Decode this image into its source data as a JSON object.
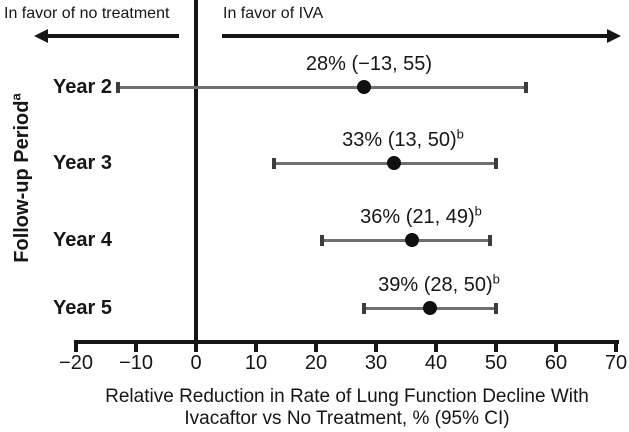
{
  "chart_data": {
    "type": "scatter",
    "plot_style": "forest-plot-horizontal-ci",
    "direction_labels": {
      "left": "In favor of no treatment",
      "right": "In favor of IVA"
    },
    "ylabel": {
      "text": "Follow-up Period",
      "superscript": "a"
    },
    "xlabel_lines": [
      "Relative Reduction in Rate of Lung Function Decline With",
      "Ivacaftor vs No Treatment, % (95% CI)"
    ],
    "xlim": [
      -20,
      70
    ],
    "xtick_values": [
      -20,
      -10,
      0,
      10,
      20,
      30,
      40,
      50,
      60,
      70
    ],
    "xtick_labels": [
      "−20",
      "−10",
      "0",
      "10",
      "20",
      "30",
      "40",
      "50",
      "60",
      "70"
    ],
    "reference_line_x": 0,
    "grid": false,
    "legend": null,
    "categories": [
      "Year 2",
      "Year 3",
      "Year 4",
      "Year 5"
    ],
    "points": [
      {
        "category": "Year 2",
        "estimate": 28,
        "ci_low": -13,
        "ci_high": 55,
        "label": "28% (−13, 55)",
        "label_superscript": ""
      },
      {
        "category": "Year 3",
        "estimate": 33,
        "ci_low": 13,
        "ci_high": 50,
        "label": "33% (13, 50)",
        "label_superscript": "b"
      },
      {
        "category": "Year 4",
        "estimate": 36,
        "ci_low": 21,
        "ci_high": 49,
        "label": "36% (21, 49)",
        "label_superscript": "b"
      },
      {
        "category": "Year 5",
        "estimate": 39,
        "ci_low": 28,
        "ci_high": 50,
        "label": "39% (28, 50)",
        "label_superscript": "b"
      }
    ],
    "colors": {
      "text": "#161616",
      "axis": "#161616",
      "point": "#101010",
      "ci_line": "#6f6f6f",
      "ci_cap": "#3c3c3c"
    }
  }
}
